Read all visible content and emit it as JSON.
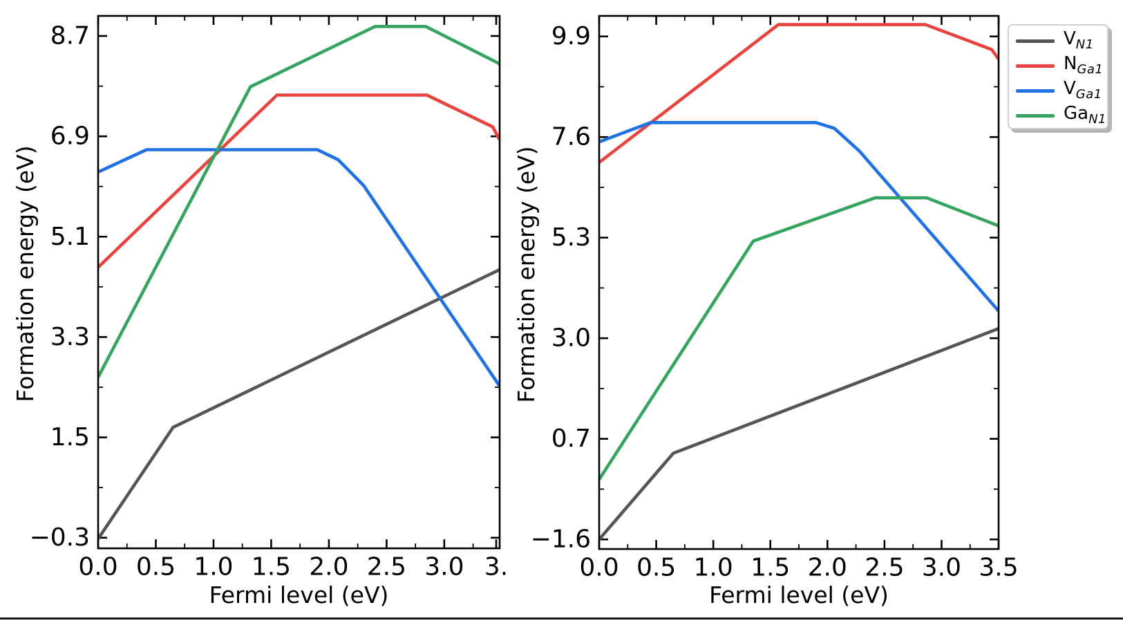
{
  "figure": {
    "background": "#ffffff",
    "axis_color": "#000000",
    "bottom_rule_color": "#161616"
  },
  "colors": {
    "vn1": "#555555",
    "nga1": "#e8433f",
    "vga1": "#2071e3",
    "gan1": "#34a45e"
  },
  "legend": {
    "position": "outside-upper-right",
    "entries": [
      {
        "main": "V",
        "sub": "N1",
        "color_key": "vn1"
      },
      {
        "main": "N",
        "sub": "Ga1",
        "color_key": "nga1"
      },
      {
        "main": "V",
        "sub": "Ga1",
        "color_key": "vga1"
      },
      {
        "main": "Ga",
        "sub": "N1",
        "color_key": "gan1"
      }
    ]
  },
  "chart_data": [
    {
      "type": "line",
      "panel": "left",
      "title": "",
      "xlabel": "Fermi level (eV)",
      "ylabel": "Formation energy (eV)",
      "xlim": [
        0,
        3.48
      ],
      "ylim": [
        -0.49,
        9.06
      ],
      "grid": false,
      "xticks": {
        "values": [
          0,
          0.5,
          1.0,
          1.5,
          2.0,
          2.5,
          3.0,
          3.45
        ],
        "labels": [
          "0.0",
          "0.5",
          "1.0",
          "1.5",
          "2.0",
          "2.5",
          "3.0",
          "3."
        ]
      },
      "yticks": {
        "values": [
          -0.3,
          1.5,
          3.3,
          5.1,
          6.9,
          8.7
        ],
        "labels": [
          "−0.3",
          "1.5",
          "3.3",
          "5.1",
          "6.9",
          "8.7"
        ]
      },
      "xminor": [
        0.25,
        0.75,
        1.25,
        1.75,
        2.25,
        2.75,
        3.25
      ],
      "yminor": [
        0.6,
        2.4,
        4.2,
        6.0,
        7.8
      ],
      "series": [
        {
          "name": "V_N1",
          "color_key": "vn1",
          "points": [
            [
              0,
              -0.32
            ],
            [
              0.65,
              1.68
            ],
            [
              3.48,
              4.51
            ]
          ]
        },
        {
          "name": "N_Ga1",
          "color_key": "nga1",
          "points": [
            [
              0,
              4.55
            ],
            [
              1.55,
              7.64
            ],
            [
              2.85,
              7.64
            ],
            [
              3.42,
              7.07
            ],
            [
              3.48,
              6.84
            ]
          ]
        },
        {
          "name": "V_Ga1",
          "color_key": "vga1",
          "points": [
            [
              0,
              6.26
            ],
            [
              0.42,
              6.66
            ],
            [
              1.9,
              6.66
            ],
            [
              2.08,
              6.48
            ],
            [
              2.3,
              6.02
            ],
            [
              3.48,
              2.42
            ]
          ]
        },
        {
          "name": "Ga_N1",
          "color_key": "gan1",
          "points": [
            [
              0,
              2.58
            ],
            [
              1.32,
              7.79
            ],
            [
              2.4,
              8.87
            ],
            [
              2.84,
              8.87
            ],
            [
              3.48,
              8.2
            ]
          ]
        }
      ]
    },
    {
      "type": "line",
      "panel": "right",
      "title": "",
      "xlabel": "Fermi level (eV)",
      "ylabel": "Formation energy (eV)",
      "xlim": [
        0,
        3.5
      ],
      "ylim": [
        -1.82,
        10.37
      ],
      "grid": false,
      "xticks": {
        "values": [
          0,
          0.5,
          1.0,
          1.5,
          2.0,
          2.5,
          3.0,
          3.5
        ],
        "labels": [
          "0.0",
          "0.5",
          "1.0",
          "1.5",
          "2.0",
          "2.5",
          "3.0",
          "3.5"
        ]
      },
      "yticks": {
        "values": [
          -1.6,
          0.7,
          3.0,
          5.3,
          7.6,
          9.9
        ],
        "labels": [
          "−1.6",
          "0.7",
          "3.0",
          "5.3",
          "7.6",
          "9.9"
        ]
      },
      "xminor": [
        0.25,
        0.75,
        1.25,
        1.75,
        2.25,
        2.75,
        3.25
      ],
      "yminor": [
        -0.45,
        1.85,
        4.15,
        6.45,
        8.75
      ],
      "series": [
        {
          "name": "V_N1",
          "color_key": "vn1",
          "points": [
            [
              0,
              -1.6
            ],
            [
              0.65,
              0.37
            ],
            [
              3.5,
              3.22
            ]
          ]
        },
        {
          "name": "N_Ga1",
          "color_key": "nga1",
          "points": [
            [
              0,
              7.02
            ],
            [
              1.57,
              10.17
            ],
            [
              2.86,
              10.17
            ],
            [
              3.44,
              9.6
            ],
            [
              3.5,
              9.38
            ]
          ]
        },
        {
          "name": "V_Ga1",
          "color_key": "vga1",
          "points": [
            [
              0,
              7.49
            ],
            [
              0.45,
              7.93
            ],
            [
              1.9,
              7.93
            ],
            [
              2.06,
              7.8
            ],
            [
              2.28,
              7.28
            ],
            [
              3.5,
              3.62
            ]
          ]
        },
        {
          "name": "Ga_N1",
          "color_key": "gan1",
          "points": [
            [
              0,
              -0.23
            ],
            [
              1.35,
              5.22
            ],
            [
              2.42,
              6.21
            ],
            [
              2.87,
              6.21
            ],
            [
              3.5,
              5.57
            ]
          ]
        }
      ]
    }
  ]
}
